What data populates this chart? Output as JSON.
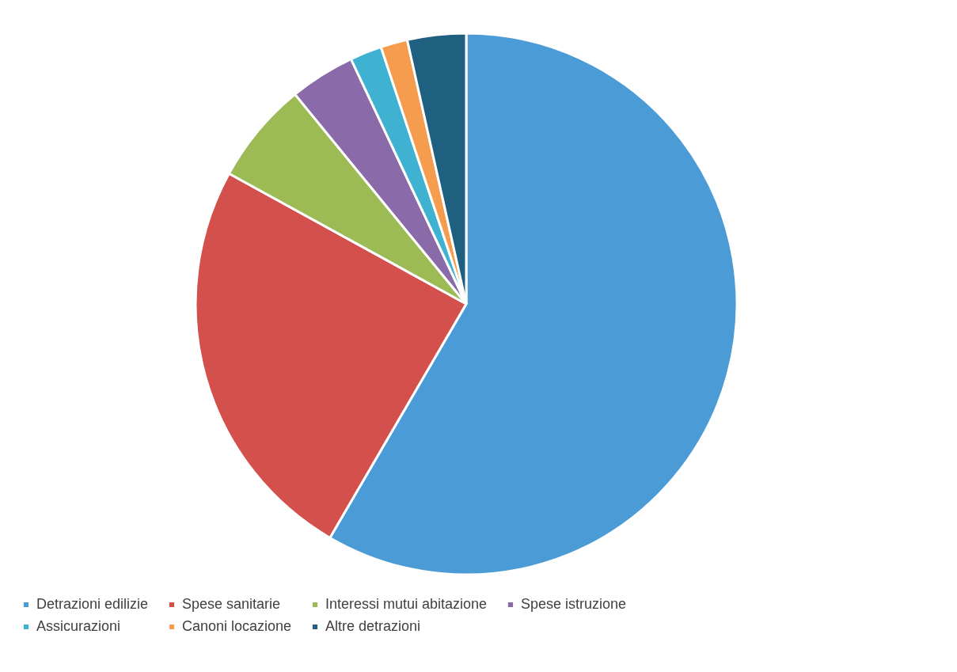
{
  "chart_data": {
    "type": "pie",
    "categories": [
      "Detrazioni edilizie",
      "Spese sanitarie",
      "Interessi mutui abitazione",
      "Spese istruzione",
      "Assicurazioni",
      "Canoni locazione",
      "Altre detrazioni"
    ],
    "values": [
      58.4,
      24.6,
      6.1,
      3.9,
      1.9,
      1.6,
      3.5
    ],
    "colors": [
      "#4a9bd6",
      "#d4504c",
      "#9dbb55",
      "#8a6aa8",
      "#3fb1d1",
      "#f59c4e",
      "#1f5f80"
    ],
    "legend": "bottom"
  }
}
